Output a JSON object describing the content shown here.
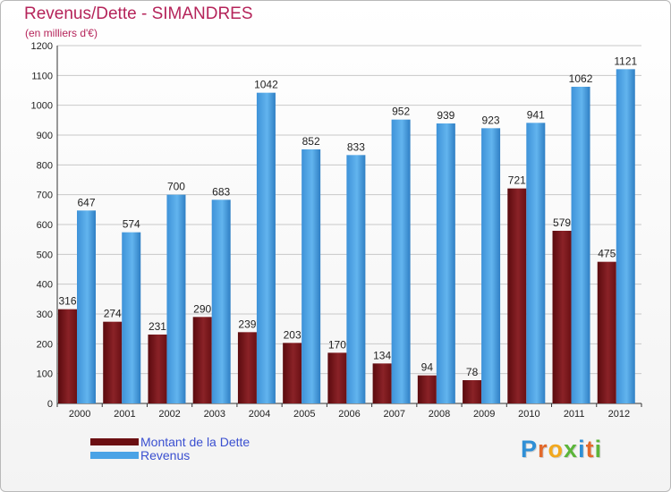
{
  "header": {
    "title": "Revenus/Dette - SIMANDRES",
    "subtitle": "(en milliers d'€)"
  },
  "chart_data": {
    "type": "bar",
    "categories": [
      "2000",
      "2001",
      "2002",
      "2003",
      "2004",
      "2005",
      "2006",
      "2007",
      "2008",
      "2009",
      "2010",
      "2011",
      "2012"
    ],
    "series": [
      {
        "name": "Montant de la Dette",
        "color": "#7a1a1f",
        "values": [
          316,
          274,
          231,
          290,
          239,
          203,
          170,
          134,
          94,
          78,
          721,
          579,
          475
        ]
      },
      {
        "name": "Revenus",
        "color": "#4aa3e6",
        "values": [
          647,
          574,
          700,
          683,
          1042,
          852,
          833,
          952,
          939,
          923,
          941,
          1062,
          1121
        ]
      }
    ],
    "yticks": [
      0,
      100,
      200,
      300,
      400,
      500,
      600,
      700,
      800,
      900,
      1000,
      1100,
      1200
    ],
    "ylim": [
      0,
      1200
    ],
    "grid": true,
    "legend_position": "bottom-left"
  },
  "legend": {
    "items": [
      {
        "label": "Montant de la Dette",
        "color": "#6b0f12"
      },
      {
        "label": "Revenus",
        "color": "#4aa3e6"
      }
    ]
  },
  "logo": {
    "letters": [
      "P",
      "r",
      "o",
      "x",
      "i",
      "t",
      "i"
    ],
    "colors": [
      "#2f8fd6",
      "#e3692b",
      "#f2a81d",
      "#5bb53a",
      "#2f8fd6",
      "#e3692b",
      "#5bb53a"
    ]
  }
}
